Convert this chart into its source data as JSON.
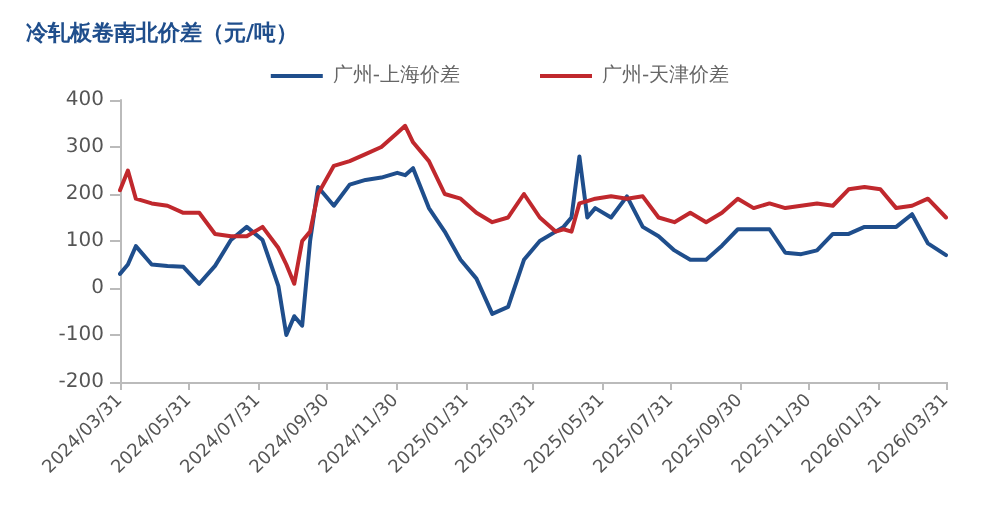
{
  "chart_data": {
    "type": "line",
    "title": "冷轧板卷南北价差（元/吨）",
    "x": [
      "2024-03-31",
      "2024-04-07",
      "2024-04-14",
      "2024-04-28",
      "2024-05-12",
      "2024-05-26",
      "2024-06-09",
      "2024-06-23",
      "2024-07-07",
      "2024-07-21",
      "2024-08-04",
      "2024-08-18",
      "2024-08-25",
      "2024-09-01",
      "2024-09-08",
      "2024-09-15",
      "2024-09-22",
      "2024-10-06",
      "2024-10-20",
      "2024-11-03",
      "2024-11-17",
      "2024-12-01",
      "2024-12-08",
      "2024-12-15",
      "2024-12-29",
      "2025-01-12",
      "2025-01-26",
      "2025-02-09",
      "2025-02-23",
      "2025-03-09",
      "2025-03-23",
      "2025-04-06",
      "2025-04-20",
      "2025-04-27",
      "2025-05-04",
      "2025-05-11",
      "2025-05-18",
      "2025-05-25",
      "2025-06-08",
      "2025-06-22",
      "2025-07-06",
      "2025-07-20",
      "2025-08-03",
      "2025-08-17",
      "2025-08-31",
      "2025-09-14",
      "2025-09-28",
      "2025-10-12",
      "2025-10-26",
      "2025-11-09",
      "2025-11-23",
      "2025-12-07",
      "2025-12-21",
      "2026-01-04",
      "2026-01-18",
      "2026-02-01",
      "2026-02-15",
      "2026-03-01",
      "2026-03-15",
      "2026-03-31"
    ],
    "series": [
      {
        "name": "广州-上海价差",
        "color": "#1f4e8c",
        "values": [
          30,
          50,
          89,
          50,
          47,
          45,
          9,
          47,
          102,
          130,
          102,
          4,
          -100,
          -60,
          -80,
          100,
          215,
          175,
          220,
          230,
          235,
          245,
          240,
          255,
          170,
          120,
          60,
          20,
          -55,
          -40,
          60,
          100,
          120,
          130,
          150,
          280,
          150,
          170,
          150,
          195,
          130,
          110,
          80,
          60,
          60,
          90,
          125,
          125,
          125,
          75,
          72,
          80,
          115,
          115,
          130,
          130,
          130,
          157,
          95,
          70
        ]
      },
      {
        "name": "广州-天津价差",
        "color": "#c0282d",
        "values": [
          208,
          250,
          190,
          180,
          175,
          160,
          160,
          115,
          110,
          110,
          130,
          85,
          50,
          9,
          100,
          120,
          200,
          260,
          270,
          285,
          300,
          330,
          345,
          310,
          270,
          200,
          190,
          160,
          140,
          150,
          200,
          150,
          120,
          125,
          120,
          180,
          185,
          190,
          195,
          190,
          195,
          150,
          140,
          160,
          140,
          160,
          190,
          170,
          180,
          170,
          175,
          180,
          175,
          210,
          215,
          210,
          170,
          175,
          190,
          150
        ]
      }
    ],
    "xlim": [
      "2024-03-31",
      "2026-03-31"
    ],
    "xticks": [
      {
        "value": "2024-03-31",
        "label": "2024/03/31"
      },
      {
        "value": "2024-05-31",
        "label": "2024/05/31"
      },
      {
        "value": "2024-07-31",
        "label": "2024/07/31"
      },
      {
        "value": "2024-09-30",
        "label": "2024/09/30"
      },
      {
        "value": "2024-11-30",
        "label": "2024/11/30"
      },
      {
        "value": "2025-01-31",
        "label": "2025/01/31"
      },
      {
        "value": "2025-03-31",
        "label": "2025/03/31"
      },
      {
        "value": "2025-05-31",
        "label": "2025/05/31"
      },
      {
        "value": "2025-07-31",
        "label": "2025/07/31"
      },
      {
        "value": "2025-09-30",
        "label": "2025/09/30"
      },
      {
        "value": "2025-11-30",
        "label": "2025/11/30"
      },
      {
        "value": "2026-01-31",
        "label": "2026/01/31"
      },
      {
        "value": "2026-03-31",
        "label": "2026/03/31"
      }
    ],
    "ylim": [
      -200,
      400
    ],
    "yticks": [
      -200,
      -100,
      0,
      100,
      200,
      300,
      400
    ],
    "grid": false,
    "legend": "top",
    "marker": "none",
    "line_style": "solid"
  }
}
